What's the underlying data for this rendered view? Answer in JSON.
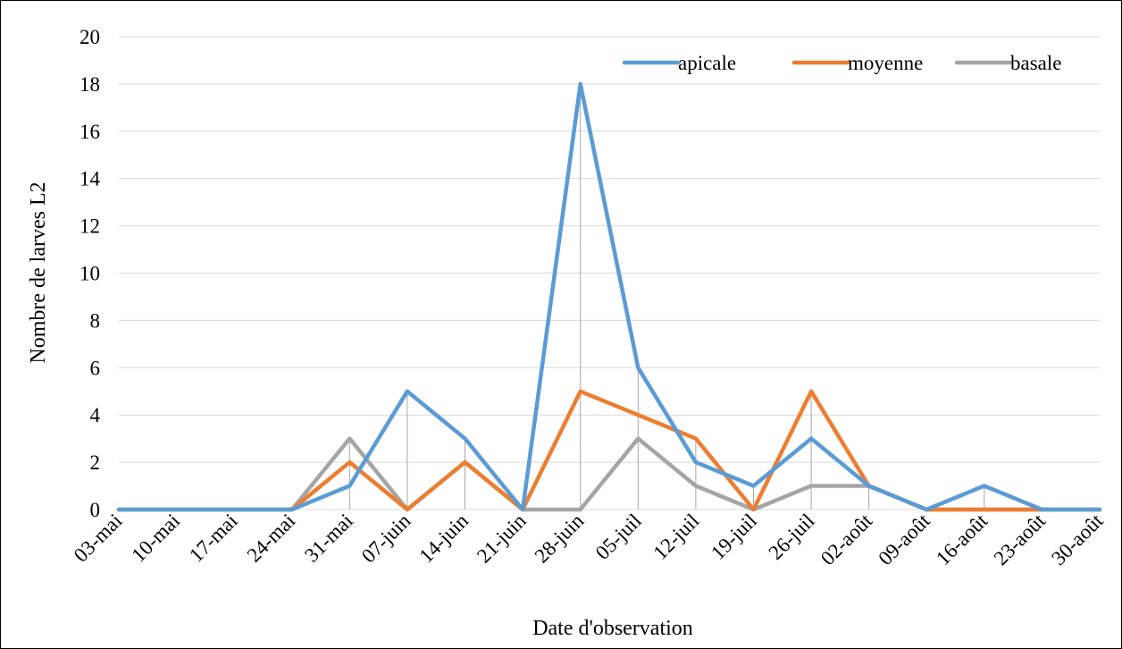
{
  "chart_data": {
    "type": "line",
    "categories": [
      "03-mai",
      "10-mai",
      "17-mai",
      "24-mai",
      "31-mai",
      "07-juin",
      "14-juin",
      "21-juin",
      "28-juin",
      "05-juil",
      "12-juil",
      "19-juil",
      "26-juil",
      "02-août",
      "09-août",
      "16-août",
      "23-août",
      "30-août"
    ],
    "x": [
      "03-mai",
      "24-mai",
      "31-mai",
      "07-juin",
      "14-juin",
      "21-juin",
      "28-juin",
      "05-juil",
      "12-juil",
      "19-juil",
      "26-juil",
      "02-août",
      "09-août",
      "16-août",
      "23-août",
      "30-août"
    ],
    "series": [
      {
        "name": "apicale",
        "color": "#5B9BD5",
        "values": [
          0,
          0,
          1,
          5,
          3,
          0,
          18,
          6,
          2,
          1,
          3,
          1,
          0,
          1,
          0,
          0
        ]
      },
      {
        "name": "moyenne",
        "color": "#ED7D31",
        "values": [
          0,
          0,
          2,
          0,
          2,
          0,
          5,
          4,
          3,
          0,
          5,
          1,
          0,
          0,
          0,
          0
        ]
      },
      {
        "name": "basale",
        "color": "#A5A5A5",
        "values": [
          0,
          0,
          3,
          0,
          2,
          0,
          0,
          3,
          1,
          0,
          1,
          1,
          0,
          0,
          0,
          0
        ]
      }
    ],
    "title": "",
    "xlabel": "Date d'observation",
    "ylabel": "Nombre de larves L2",
    "ylim": [
      0,
      20
    ],
    "yticks": [
      0,
      2,
      4,
      6,
      8,
      10,
      12,
      14,
      16,
      18,
      20
    ],
    "grid": true,
    "drop_lines": true,
    "legend": "top-right"
  }
}
